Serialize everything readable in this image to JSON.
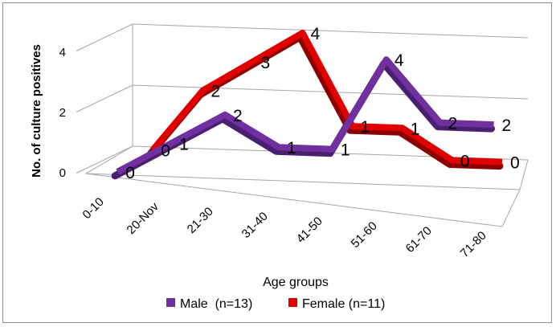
{
  "chart_data": {
    "type": "line",
    "style": "3d",
    "categories": [
      "0-10",
      "20-Nov",
      "21-30",
      "31-40",
      "41-50",
      "51-60",
      "61-70",
      "71-80"
    ],
    "series": [
      {
        "name": "Male  (n=13)",
        "values": [
          0,
          1,
          2,
          1,
          1,
          4,
          2,
          2
        ],
        "color": "#7030a0",
        "labels": [
          "0",
          "1",
          "2",
          "1",
          "1",
          "4",
          "2",
          "2"
        ]
      },
      {
        "name": "Female (n=11)",
        "values": [
          0,
          2,
          3,
          4,
          1,
          1,
          0,
          0
        ],
        "color": "#e00000",
        "labels": [
          "0",
          "2",
          "3",
          "4",
          "1",
          "1",
          "0",
          "0"
        ]
      }
    ],
    "xlabel": "Age groups",
    "ylabel": "No. of culture positives",
    "yticks": [
      "0",
      "2",
      "4"
    ],
    "ylim": [
      0,
      4
    ],
    "grid": true,
    "legend": "bottom"
  }
}
